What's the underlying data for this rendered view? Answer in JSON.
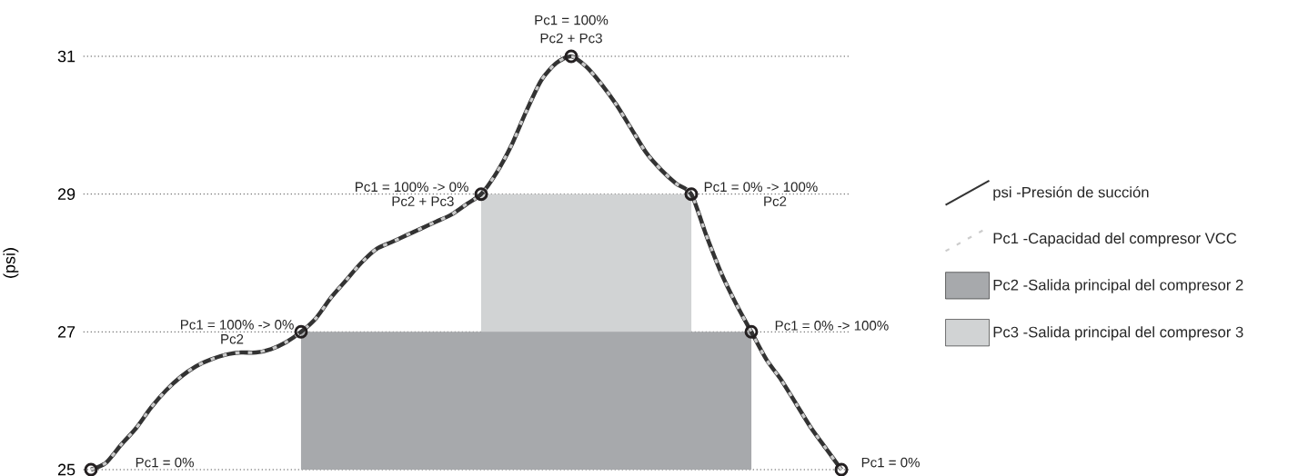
{
  "chart_data": {
    "type": "line",
    "categories": [
      null,
      null,
      null,
      null,
      null,
      null,
      null,
      null,
      null,
      null,
      null,
      null,
      null,
      null,
      null,
      null,
      null,
      null,
      null,
      null,
      null,
      null,
      null,
      null,
      null,
      null,
      null,
      null,
      null,
      null,
      null,
      null,
      null,
      null,
      null,
      null,
      null,
      null,
      null,
      null,
      null,
      null,
      null,
      null,
      null,
      null,
      null,
      null,
      null,
      null,
      null
    ],
    "ylabel": "(psi)",
    "ylim": [
      25,
      31
    ],
    "yticks": [
      25,
      27,
      29,
      31
    ],
    "grid": "y",
    "tick_labels": "y",
    "legend": "right",
    "annotations": [
      "Pc1 = 100%",
      "Pc2 + Pc3",
      "Pc1 = 100% -> 0%",
      "Pc2 + Pc3",
      "Pc1 = 0% -> 100%",
      "Pc2",
      "Pc1 = 100% -> 0%",
      "Pc2",
      "Pc1 = 0% -> 100%",
      "Pc1 = 0%",
      "Pc1 = 0%"
    ],
    "series": [
      {
        "name": "psi -Presión de succión",
        "color": "#333333",
        "line_style": "solid",
        "values": [
          25.0,
          25.1,
          25.36,
          25.6,
          25.9,
          26.15,
          26.35,
          26.5,
          26.6,
          26.67,
          26.7,
          26.7,
          26.75,
          26.85,
          27.0,
          27.2,
          27.5,
          27.75,
          28.0,
          28.2,
          28.3,
          28.4,
          28.5,
          28.6,
          28.7,
          28.85,
          29.0,
          29.3,
          29.7,
          30.2,
          30.65,
          30.9,
          31.0,
          30.85,
          30.6,
          30.3,
          29.95,
          29.6,
          29.35,
          29.15,
          29.0,
          28.4,
          27.85,
          27.4,
          27.0,
          26.6,
          26.3,
          25.95,
          25.6,
          25.3,
          25.0
        ]
      },
      {
        "name": "Pc1 -Capacidad del compresor VCC",
        "color": "#cccccc",
        "line_style": "dashed",
        "values": [
          25.0,
          25.1,
          25.36,
          25.6,
          25.9,
          26.15,
          26.35,
          26.5,
          26.6,
          26.67,
          26.7,
          26.7,
          26.75,
          26.85,
          27.0,
          27.2,
          27.5,
          27.75,
          28.0,
          28.2,
          28.3,
          28.4,
          28.5,
          28.6,
          28.7,
          28.85,
          29.0,
          29.3,
          29.7,
          30.2,
          30.65,
          30.9,
          31.0,
          30.85,
          30.6,
          30.3,
          29.95,
          29.6,
          29.35,
          29.15,
          29.0,
          28.4,
          27.85,
          27.4,
          27.0,
          26.6,
          26.3,
          25.95,
          25.6,
          25.3,
          25.0
        ]
      },
      {
        "name": "Pc2 -Salida principal del compresor 2",
        "type": "area",
        "color": "#a7a9ac",
        "values": [
          null,
          null,
          null,
          null,
          null,
          null,
          null,
          null,
          null,
          null,
          null,
          null,
          null,
          null,
          27,
          27,
          27,
          27,
          27,
          27,
          27,
          27,
          27,
          27,
          27,
          27,
          27,
          27,
          27,
          27,
          27,
          27,
          27,
          27,
          27,
          27,
          27,
          27,
          27,
          27,
          27,
          27,
          27,
          27,
          27,
          null,
          null,
          null,
          null,
          null,
          null
        ]
      },
      {
        "name": "Pc3 -Salida principal del compresor 3",
        "type": "area",
        "color": "#d1d3d4",
        "values": [
          null,
          null,
          null,
          null,
          null,
          null,
          null,
          null,
          null,
          null,
          null,
          null,
          null,
          null,
          null,
          null,
          null,
          null,
          null,
          null,
          null,
          null,
          null,
          null,
          null,
          null,
          29,
          29,
          29,
          29,
          29,
          29,
          29,
          29,
          29,
          29,
          29,
          29,
          29,
          29,
          29,
          null,
          null,
          null,
          null,
          null,
          null,
          null,
          null,
          null,
          null
        ]
      },
      {
        "type": "scatter",
        "color": "#231f20",
        "marker": "circle",
        "values": [
          25,
          null,
          null,
          null,
          null,
          null,
          null,
          null,
          null,
          null,
          null,
          null,
          null,
          null,
          27,
          null,
          null,
          null,
          null,
          null,
          null,
          null,
          null,
          null,
          null,
          null,
          29,
          null,
          null,
          null,
          null,
          null,
          31,
          null,
          null,
          null,
          null,
          null,
          null,
          null,
          29,
          null,
          null,
          null,
          27,
          null,
          null,
          null,
          null,
          null,
          25
        ]
      }
    ]
  }
}
